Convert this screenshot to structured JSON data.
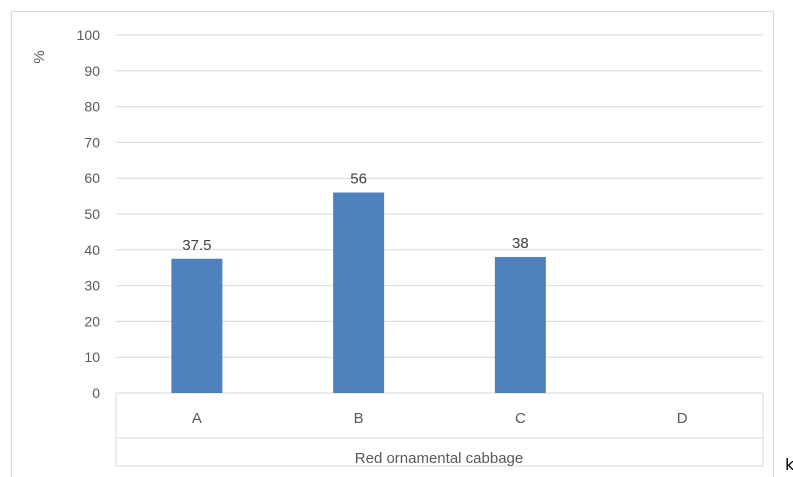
{
  "chart_data": {
    "type": "bar",
    "title": "",
    "xlabel": "Red ornamental cabbage",
    "ylabel": "%",
    "categories": [
      "A",
      "B",
      "C",
      "D"
    ],
    "values": [
      37.5,
      56,
      38,
      null
    ],
    "data_labels": [
      "37.5",
      "56",
      "38",
      ""
    ],
    "yticks": [
      "0",
      "10",
      "20",
      "30",
      "40",
      "50",
      "60",
      "70",
      "80",
      "90",
      "100"
    ],
    "ylim": [
      0,
      100
    ],
    "grid": true,
    "legend": "none",
    "bar_color": "#4f81bd",
    "grid_color": "#d9d9d9"
  },
  "stray_text": "k"
}
